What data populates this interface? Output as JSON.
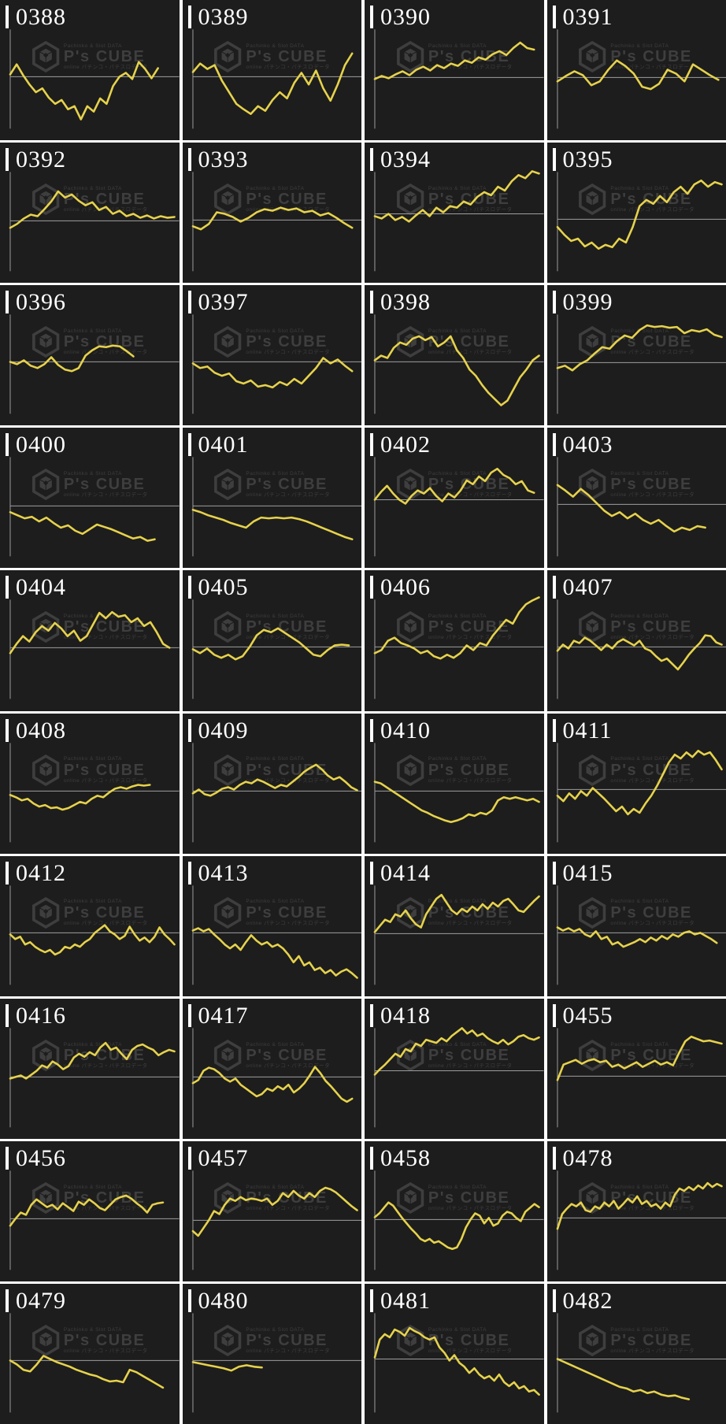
{
  "page": {
    "description": "Grid of per-machine slump graphs",
    "grid": {
      "columns": 4,
      "rows": 10
    }
  },
  "colors": {
    "gap": "#ffffff",
    "cell_bg": "#1d1d1d",
    "line": "#e6d24c",
    "axis": "#9e9e9e",
    "label": "#ffffff",
    "watermark": "#3e3e3e"
  },
  "watermark": {
    "logo": "cube-hexagon-icon",
    "top": "Pachinko & Slot DATA",
    "brand": "P's CUBE",
    "bottom": "online パチンコ・パチスロデータ"
  },
  "chart_data": [
    {
      "id": "0388",
      "type": "line",
      "baseline": 99,
      "span": 0.9,
      "values": [
        3,
        16,
        2,
        -10,
        -20,
        -15,
        -27,
        -35,
        -30,
        -42,
        -38,
        -55,
        -38,
        -45,
        -28,
        -35,
        -12,
        0,
        5,
        -3,
        19,
        10,
        -2,
        11
      ]
    },
    {
      "id": "0389",
      "type": "line",
      "baseline": 99,
      "span": 0.97,
      "values": [
        6,
        17,
        10,
        15,
        -5,
        -20,
        -35,
        -42,
        -48,
        -38,
        -44,
        -30,
        -20,
        -28,
        -8,
        5,
        -10,
        8,
        -15,
        -31,
        -10,
        15,
        30
      ]
    },
    {
      "id": "0390",
      "type": "line",
      "baseline": 100,
      "span": 0.97,
      "values": [
        -2,
        2,
        -1,
        4,
        8,
        3,
        10,
        14,
        9,
        16,
        12,
        18,
        15,
        22,
        19,
        26,
        23,
        30,
        34,
        29,
        38,
        45,
        38,
        36
      ]
    },
    {
      "id": "0391",
      "type": "line",
      "baseline": 100,
      "span": 0.98,
      "values": [
        -5,
        2,
        8,
        3,
        -10,
        -5,
        10,
        22,
        15,
        5,
        -12,
        -15,
        -8,
        10,
        5,
        -5,
        17,
        10,
        3,
        -3
      ]
    },
    {
      "id": "0392",
      "type": "line",
      "baseline": 101,
      "span": 1.0,
      "values": [
        -9,
        -4,
        3,
        8,
        6,
        15,
        25,
        38,
        30,
        34,
        26,
        20,
        24,
        14,
        18,
        9,
        13,
        6,
        9,
        4,
        7,
        3,
        6,
        4,
        5
      ]
    },
    {
      "id": "0393",
      "type": "line",
      "baseline": 100,
      "span": 0.97,
      "values": [
        -8,
        -12,
        -5,
        10,
        8,
        4,
        -2,
        3,
        10,
        14,
        12,
        16,
        13,
        15,
        10,
        12,
        6,
        9,
        3,
        -4,
        -10
      ]
    },
    {
      "id": "0394",
      "type": "line",
      "baseline": 92,
      "span": 1.0,
      "values": [
        -3,
        -6,
        0,
        -8,
        -4,
        -10,
        -2,
        5,
        -3,
        8,
        2,
        10,
        8,
        16,
        12,
        22,
        28,
        24,
        35,
        30,
        42,
        50,
        46,
        55,
        52
      ]
    },
    {
      "id": "0395",
      "type": "line",
      "baseline": 99,
      "span": 1.0,
      "values": [
        -10,
        -20,
        -28,
        -25,
        -35,
        -30,
        -38,
        -33,
        -36,
        -25,
        -30,
        -10,
        17,
        25,
        20,
        30,
        22,
        35,
        42,
        33,
        45,
        50,
        42,
        48,
        45
      ]
    },
    {
      "id": "0396",
      "type": "line",
      "baseline": 99,
      "span": 0.75,
      "values": [
        0,
        -3,
        2,
        -5,
        -8,
        -3,
        6,
        -4,
        -10,
        -12,
        -8,
        8,
        15,
        20,
        19,
        21,
        20,
        14,
        7
      ]
    },
    {
      "id": "0397",
      "type": "line",
      "baseline": 99,
      "span": 0.97,
      "values": [
        -2,
        -8,
        -6,
        -14,
        -18,
        -15,
        -25,
        -28,
        -24,
        -32,
        -30,
        -33,
        -26,
        -30,
        -22,
        -28,
        -18,
        -8,
        5,
        -2,
        3,
        -5,
        -12
      ]
    },
    {
      "id": "0398",
      "type": "line",
      "baseline": 99,
      "span": 1.0,
      "values": [
        2,
        8,
        5,
        18,
        25,
        22,
        30,
        33,
        28,
        32,
        20,
        25,
        33,
        15,
        5,
        -10,
        -18,
        -30,
        -40,
        -48,
        -56,
        -50,
        -35,
        -20,
        -10,
        2,
        8
      ]
    },
    {
      "id": "0399",
      "type": "line",
      "baseline": 100,
      "span": 1.0,
      "values": [
        -7,
        -4,
        -10,
        -2,
        3,
        12,
        20,
        18,
        28,
        35,
        32,
        42,
        48,
        46,
        47,
        45,
        46,
        38,
        42,
        40,
        43,
        36,
        33
      ]
    },
    {
      "id": "0400",
      "type": "line",
      "baseline": 101,
      "span": 0.88,
      "values": [
        -8,
        -12,
        -16,
        -14,
        -20,
        -15,
        -22,
        -28,
        -25,
        -32,
        -36,
        -30,
        -24,
        -27,
        -30,
        -34,
        -38,
        -42,
        -40,
        -45,
        -43
      ]
    },
    {
      "id": "0401",
      "type": "line",
      "baseline": 101,
      "span": 0.97,
      "values": [
        -5,
        -8,
        -12,
        -15,
        -18,
        -22,
        -25,
        -28,
        -20,
        -15,
        -16,
        -15,
        -16,
        -15,
        -17,
        -20,
        -24,
        -28,
        -32,
        -36,
        -40,
        -43
      ]
    },
    {
      "id": "0402",
      "type": "line",
      "baseline": 93,
      "span": 0.97,
      "values": [
        0,
        10,
        18,
        8,
        0,
        -5,
        5,
        12,
        8,
        15,
        5,
        -2,
        8,
        3,
        12,
        25,
        20,
        30,
        24,
        35,
        40,
        32,
        28,
        20,
        24,
        12,
        9
      ]
    },
    {
      "id": "0403",
      "type": "line",
      "baseline": 99,
      "span": 0.9,
      "values": [
        25,
        18,
        10,
        20,
        12,
        2,
        -8,
        -15,
        -10,
        -18,
        -12,
        -20,
        -25,
        -20,
        -28,
        -35,
        -30,
        -33,
        -28,
        -30
      ]
    },
    {
      "id": "0404",
      "type": "line",
      "baseline": 100,
      "span": 0.97,
      "values": [
        -7,
        5,
        15,
        8,
        20,
        28,
        22,
        32,
        25,
        15,
        22,
        9,
        15,
        30,
        45,
        38,
        46,
        40,
        42,
        33,
        38,
        28,
        33,
        20,
        5,
        0
      ]
    },
    {
      "id": "0405",
      "type": "line",
      "baseline": 99,
      "span": 0.95,
      "values": [
        -3,
        -8,
        -2,
        -10,
        -14,
        -10,
        -16,
        -12,
        0,
        15,
        22,
        19,
        24,
        18,
        12,
        6,
        -2,
        -10,
        -12,
        -4,
        2,
        3,
        2
      ]
    },
    {
      "id": "0406",
      "type": "line",
      "baseline": 99,
      "span": 1.0,
      "values": [
        -8,
        -4,
        8,
        12,
        5,
        2,
        -2,
        -8,
        -5,
        -12,
        -15,
        -10,
        -14,
        -8,
        2,
        -4,
        5,
        2,
        15,
        25,
        35,
        30,
        45,
        55,
        60,
        64
      ]
    },
    {
      "id": "0407",
      "type": "line",
      "baseline": 99,
      "span": 1.0,
      "values": [
        -5,
        3,
        -2,
        8,
        5,
        12,
        8,
        2,
        -4,
        3,
        -2,
        6,
        10,
        6,
        2,
        8,
        -2,
        -5,
        -12,
        -18,
        -15,
        -22,
        -29,
        -20,
        -10,
        -2,
        5,
        15,
        14,
        6,
        3
      ]
    },
    {
      "id": "0408",
      "type": "line",
      "baseline": 100,
      "span": 0.85,
      "values": [
        -5,
        -8,
        -12,
        -10,
        -16,
        -20,
        -18,
        -22,
        -21,
        -24,
        -22,
        -18,
        -14,
        -16,
        -10,
        -6,
        -8,
        -2,
        3,
        5,
        3,
        6,
        8,
        7,
        8
      ]
    },
    {
      "id": "0409",
      "type": "line",
      "baseline": 100,
      "span": 1.0,
      "values": [
        -3,
        2,
        -4,
        -6,
        -2,
        3,
        5,
        2,
        8,
        12,
        10,
        15,
        12,
        8,
        4,
        8,
        6,
        12,
        18,
        25,
        30,
        34,
        28,
        20,
        15,
        18,
        12,
        5,
        1
      ]
    },
    {
      "id": "0410",
      "type": "line",
      "baseline": 100,
      "span": 1.0,
      "values": [
        12,
        10,
        5,
        0,
        -5,
        -10,
        -15,
        -20,
        -25,
        -28,
        -32,
        -35,
        -38,
        -40,
        -38,
        -35,
        -30,
        -32,
        -28,
        -30,
        -25,
        -12,
        -8,
        -10,
        -8,
        -10,
        -12,
        -10,
        -14
      ]
    },
    {
      "id": "0411",
      "type": "line",
      "baseline": 98,
      "span": 1.0,
      "values": [
        -8,
        -15,
        -5,
        -12,
        -2,
        -8,
        2,
        -5,
        -12,
        -20,
        -28,
        -22,
        -32,
        -25,
        -30,
        -18,
        -8,
        5,
        20,
        35,
        45,
        40,
        48,
        42,
        50,
        45,
        48,
        38,
        26
      ]
    },
    {
      "id": "0412",
      "type": "line",
      "baseline": 99,
      "span": 1.0,
      "values": [
        -2,
        -8,
        -5,
        -15,
        -12,
        -18,
        -22,
        -25,
        -22,
        -28,
        -25,
        -18,
        -20,
        -15,
        -18,
        -12,
        -8,
        0,
        5,
        10,
        2,
        -2,
        -8,
        -4,
        8,
        -2,
        -10,
        -6,
        -12,
        -5,
        7,
        -2,
        -8,
        -15
      ]
    },
    {
      "id": "0413",
      "type": "line",
      "baseline": 99,
      "span": 1.0,
      "values": [
        3,
        6,
        2,
        5,
        -2,
        -8,
        -15,
        -20,
        -15,
        -22,
        -12,
        -3,
        -10,
        -15,
        -12,
        -18,
        -15,
        -20,
        -28,
        -38,
        -30,
        -42,
        -38,
        -48,
        -45,
        -52,
        -48,
        -55,
        -50,
        -47,
        -52,
        -58
      ]
    },
    {
      "id": "0414",
      "type": "line",
      "baseline": 100,
      "span": 1.0,
      "values": [
        2,
        10,
        18,
        15,
        25,
        22,
        30,
        20,
        12,
        8,
        25,
        35,
        45,
        50,
        40,
        30,
        25,
        32,
        28,
        35,
        30,
        38,
        32,
        40,
        35,
        42,
        45,
        38,
        30,
        28,
        35,
        42,
        48
      ]
    },
    {
      "id": "0415",
      "type": "line",
      "baseline": 99,
      "span": 0.97,
      "values": [
        7,
        3,
        6,
        2,
        5,
        -2,
        -5,
        2,
        -8,
        -5,
        -15,
        -12,
        -18,
        -15,
        -12,
        -8,
        -12,
        -6,
        -10,
        -4,
        -8,
        -2,
        -5,
        0,
        2,
        -2,
        0,
        -4,
        -8,
        -13
      ]
    },
    {
      "id": "0416",
      "type": "line",
      "baseline": 101,
      "span": 1.0,
      "values": [
        -2,
        0,
        2,
        -2,
        3,
        8,
        15,
        12,
        20,
        16,
        10,
        14,
        25,
        30,
        26,
        32,
        28,
        38,
        44,
        35,
        38,
        30,
        23,
        35,
        40,
        42,
        38,
        35,
        28,
        32,
        35,
        33
      ]
    },
    {
      "id": "0417",
      "type": "line",
      "baseline": 101,
      "span": 0.97,
      "values": [
        -8,
        -4,
        8,
        12,
        10,
        5,
        -2,
        -6,
        -2,
        -10,
        -15,
        -20,
        -25,
        -22,
        -15,
        -18,
        -12,
        -16,
        -10,
        -20,
        -15,
        -8,
        2,
        13,
        5,
        -5,
        -12,
        -20,
        -28,
        -32,
        -28
      ]
    },
    {
      "id": "0418",
      "type": "line",
      "baseline": 93,
      "span": 1.0,
      "values": [
        -5,
        2,
        8,
        15,
        22,
        18,
        28,
        25,
        35,
        32,
        40,
        38,
        36,
        42,
        38,
        45,
        50,
        55,
        48,
        52,
        45,
        48,
        42,
        38,
        35,
        40,
        34,
        38,
        44,
        46,
        42,
        40,
        43
      ]
    },
    {
      "id": "0455",
      "type": "line",
      "baseline": 100,
      "span": 1.0,
      "values": [
        -5,
        15,
        18,
        21,
        16,
        20,
        22,
        18,
        20,
        12,
        15,
        10,
        14,
        18,
        12,
        16,
        20,
        15,
        18,
        14,
        30,
        45,
        51,
        48,
        45,
        46,
        44,
        42
      ]
    },
    {
      "id": "0456",
      "type": "line",
      "baseline": 100,
      "span": 0.93,
      "values": [
        -9,
        0,
        8,
        5,
        18,
        25,
        20,
        15,
        18,
        12,
        20,
        15,
        10,
        22,
        18,
        25,
        20,
        14,
        11,
        18,
        25,
        28,
        30,
        26,
        20,
        15,
        8,
        18,
        20,
        21
      ]
    },
    {
      "id": "0457",
      "type": "line",
      "baseline": 102,
      "span": 1.0,
      "values": [
        -14,
        -20,
        -10,
        0,
        12,
        8,
        20,
        28,
        25,
        30,
        26,
        28,
        27,
        25,
        28,
        20,
        25,
        35,
        30,
        38,
        32,
        28,
        35,
        30,
        38,
        42,
        40,
        36,
        30,
        24,
        18,
        13
      ]
    },
    {
      "id": "0458",
      "type": "line",
      "baseline": 101,
      "span": 1.0,
      "values": [
        3,
        8,
        15,
        22,
        18,
        10,
        2,
        -5,
        -12,
        -18,
        -25,
        -28,
        -25,
        -30,
        -28,
        -32,
        -36,
        -38,
        -36,
        -25,
        -10,
        0,
        8,
        5,
        -5,
        2,
        -8,
        -5,
        5,
        10,
        8,
        2,
        -2,
        10,
        15,
        20,
        16
      ]
    },
    {
      "id": "0478",
      "type": "line",
      "baseline": 99,
      "span": 1.0,
      "values": [
        -14,
        5,
        12,
        18,
        15,
        20,
        10,
        8,
        15,
        12,
        20,
        15,
        22,
        12,
        18,
        25,
        20,
        28,
        18,
        22,
        15,
        18,
        12,
        20,
        15,
        30,
        38,
        35,
        40,
        36,
        42,
        38,
        45,
        40,
        44,
        41
      ]
    },
    {
      "id": "0479",
      "type": "line",
      "baseline": 99,
      "span": 0.93,
      "values": [
        0,
        -5,
        -12,
        -14,
        -5,
        6,
        2,
        -2,
        -5,
        -8,
        -12,
        -15,
        -18,
        -20,
        -24,
        -27,
        -26,
        -28,
        -12,
        -15,
        -20,
        -25,
        -30,
        -35
      ]
    },
    {
      "id": "0480",
      "type": "line",
      "baseline": 99,
      "span": 0.42,
      "values": [
        -2,
        -4,
        -6,
        -8,
        -10,
        -13,
        -8,
        -6,
        -8,
        -9
      ]
    },
    {
      "id": "0481",
      "type": "line",
      "baseline": 97,
      "span": 1.0,
      "values": [
        2,
        25,
        32,
        28,
        38,
        35,
        30,
        40,
        36,
        33,
        28,
        25,
        28,
        15,
        8,
        -2,
        5,
        -5,
        -10,
        -18,
        -12,
        -20,
        -25,
        -22,
        -28,
        -20,
        -30,
        -35,
        -30,
        -38,
        -35,
        -42,
        -40,
        -46
      ]
    },
    {
      "id": "0482",
      "type": "line",
      "baseline": 97,
      "span": 0.8,
      "values": [
        0,
        -4,
        -8,
        -12,
        -16,
        -20,
        -24,
        -28,
        -32,
        -36,
        -38,
        -42,
        -40,
        -44,
        -42,
        -46,
        -48,
        -47,
        -50,
        -52
      ]
    }
  ]
}
